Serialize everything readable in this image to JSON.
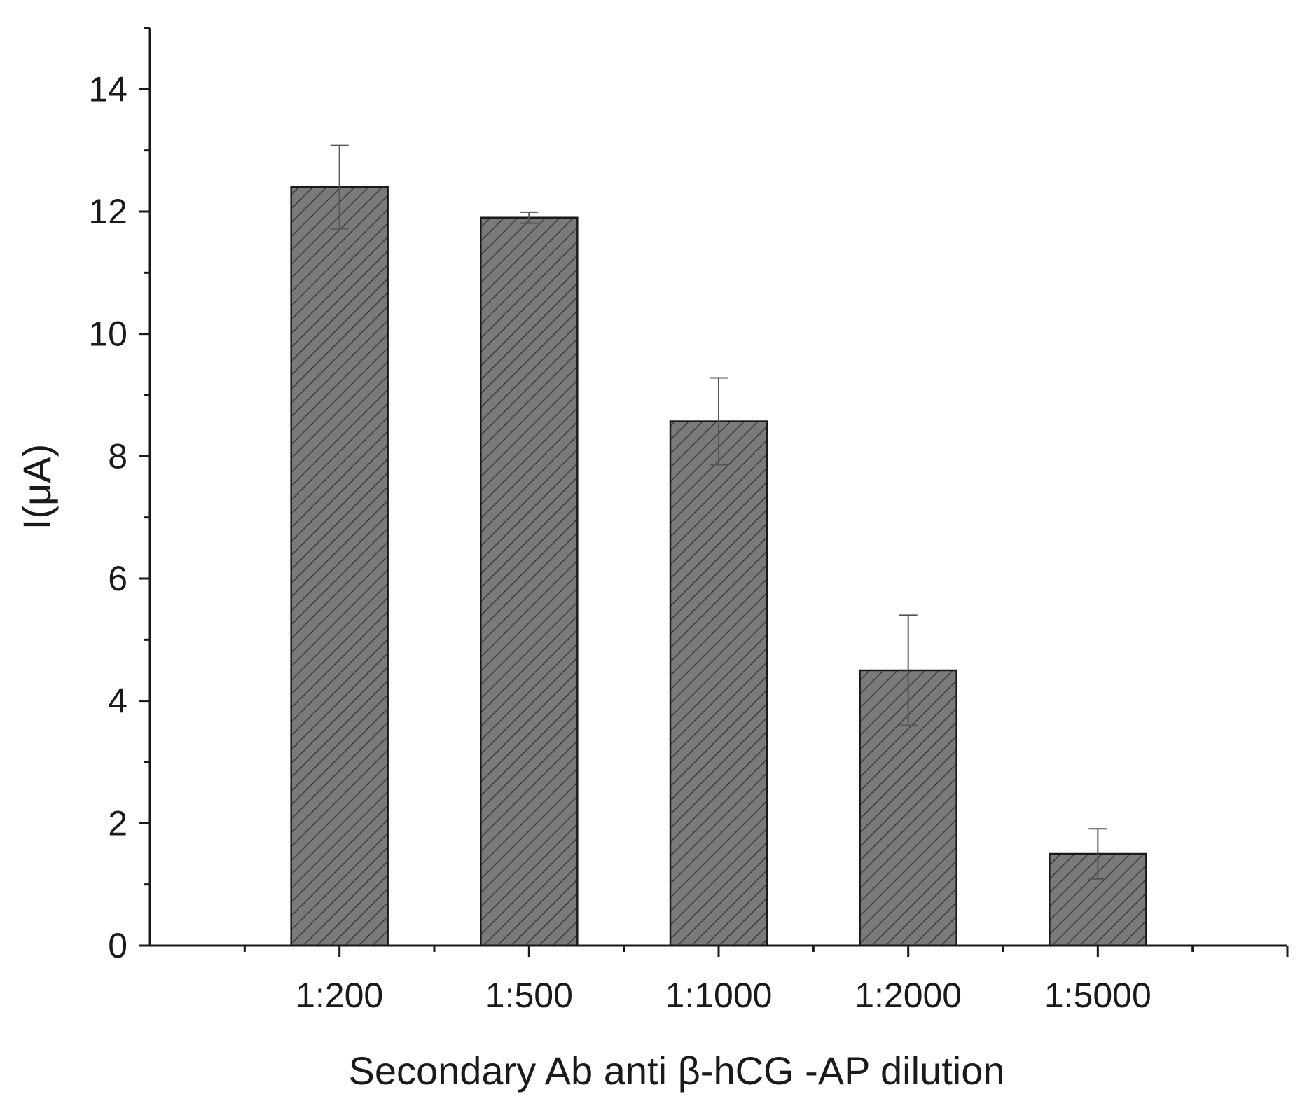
{
  "chart_data": {
    "type": "bar",
    "title": "",
    "xlabel": "Secondary Ab anti β-hCG -AP dilution",
    "ylabel": "I(μA)",
    "categories": [
      "1:200",
      "1:500",
      "1:1000",
      "1:2000",
      "1:5000"
    ],
    "values": [
      12.4,
      11.9,
      8.57,
      4.5,
      1.5
    ],
    "errors": [
      0.68,
      0.09,
      0.71,
      0.9,
      0.41
    ],
    "ylim": [
      0,
      15
    ],
    "yticks": [
      0,
      2,
      4,
      6,
      8,
      10,
      12,
      14
    ],
    "grid": false,
    "bar_fill": "#7a7a7a",
    "hatch_color": "#3a3a3a",
    "axis_color": "#1a1a1a"
  }
}
